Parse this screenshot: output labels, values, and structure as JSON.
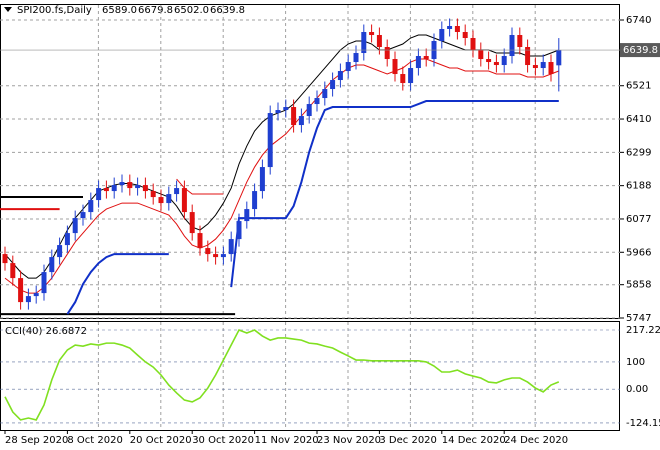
{
  "chart_data": {
    "type": "candlestick",
    "symbol": "SPI200.fs,Daily",
    "last_bar": {
      "values": [
        6589,
        6679.8,
        6502,
        6639.8
      ],
      "value_labels": [
        "6589.0",
        "6679.8",
        "6502.0",
        "6639.8"
      ]
    },
    "categories": [
      "28 Sep 2020",
      null,
      null,
      null,
      null,
      null,
      null,
      null,
      "8 Oct 2020",
      null,
      null,
      null,
      null,
      null,
      null,
      null,
      "20 Oct 2020",
      null,
      null,
      null,
      null,
      null,
      null,
      null,
      "30 Oct 2020",
      null,
      null,
      null,
      null,
      null,
      null,
      null,
      "11 Nov 2020",
      null,
      null,
      null,
      null,
      null,
      null,
      null,
      "23 Nov 2020",
      null,
      null,
      null,
      null,
      null,
      null,
      null,
      "3 Dec 2020",
      null,
      null,
      null,
      null,
      null,
      null,
      null,
      "14 Dec 2020",
      null,
      null,
      null,
      null,
      null,
      null,
      null,
      "24 Dec 2020",
      null,
      null,
      null,
      null,
      null,
      null,
      null
    ],
    "open": [
      5960,
      5930,
      5880,
      5800,
      5820,
      5830,
      5900,
      5950,
      5990,
      6030,
      6080,
      6100,
      6140,
      6180,
      6170,
      6190,
      6200,
      6180,
      6190,
      6170,
      6150,
      6130,
      6160,
      6180,
      6100,
      6030,
      5980,
      5960,
      5950,
      5960,
      6010,
      6070,
      6110,
      6170,
      6250,
      6430,
      6440,
      6450,
      6390,
      6420,
      6460,
      6480,
      6510,
      6540,
      6570,
      6600,
      6630,
      6700,
      6690,
      6650,
      6610,
      6560,
      6530,
      6580,
      6620,
      6610,
      6670,
      6710,
      6720,
      6700,
      6680,
      6640,
      6610,
      6600,
      6590,
      6620,
      6690,
      6650,
      6590,
      6580,
      6600,
      6589
    ],
    "high": [
      5985,
      5955,
      5905,
      5845,
      5855,
      5925,
      5975,
      6015,
      6055,
      6105,
      6125,
      6165,
      6205,
      6205,
      6215,
      6225,
      6225,
      6215,
      6215,
      6195,
      6175,
      6185,
      6205,
      6205,
      6125,
      6055,
      6005,
      5985,
      5985,
      6035,
      6095,
      6135,
      6195,
      6275,
      6455,
      6465,
      6475,
      6475,
      6445,
      6485,
      6505,
      6535,
      6565,
      6595,
      6625,
      6655,
      6725,
      6725,
      6715,
      6675,
      6635,
      6585,
      6605,
      6645,
      6645,
      6695,
      6735,
      6745,
      6745,
      6725,
      6705,
      6665,
      6635,
      6625,
      6645,
      6715,
      6715,
      6675,
      6615,
      6625,
      6625,
      6679.8
    ],
    "low": [
      5905,
      5855,
      5775,
      5775,
      5795,
      5805,
      5875,
      5925,
      5965,
      6005,
      6055,
      6075,
      6115,
      6145,
      6145,
      6165,
      6155,
      6155,
      6145,
      6125,
      6105,
      6105,
      6135,
      6075,
      6005,
      5955,
      5935,
      5925,
      5925,
      5935,
      5985,
      6045,
      6085,
      6145,
      6225,
      6405,
      6415,
      6365,
      6365,
      6395,
      6435,
      6455,
      6485,
      6515,
      6545,
      6575,
      6605,
      6665,
      6625,
      6585,
      6535,
      6505,
      6505,
      6555,
      6585,
      6585,
      6645,
      6685,
      6675,
      6655,
      6615,
      6585,
      6575,
      6565,
      6565,
      6595,
      6625,
      6565,
      6555,
      6555,
      6535,
      6502
    ],
    "close": [
      5930,
      5880,
      5800,
      5820,
      5830,
      5900,
      5950,
      5990,
      6030,
      6080,
      6100,
      6140,
      6180,
      6170,
      6190,
      6200,
      6180,
      6190,
      6170,
      6150,
      6130,
      6160,
      6180,
      6100,
      6030,
      5980,
      5960,
      5950,
      5960,
      6010,
      6070,
      6110,
      6170,
      6250,
      6430,
      6440,
      6450,
      6390,
      6420,
      6460,
      6480,
      6510,
      6540,
      6570,
      6600,
      6630,
      6700,
      6690,
      6650,
      6610,
      6560,
      6530,
      6580,
      6620,
      6610,
      6670,
      6710,
      6720,
      6700,
      6680,
      6640,
      6610,
      6600,
      6590,
      6620,
      6690,
      6650,
      6590,
      6580,
      6600,
      6560,
      6639.8
    ],
    "up_color": "#1f3fd0",
    "down_color": "#e01010",
    "lines": [
      {
        "color": "#000000",
        "values": [
          5960,
          5930,
          5900,
          5880,
          5880,
          5900,
          5940,
          5990,
          6040,
          6080,
          6110,
          6140,
          6170,
          6180,
          6190,
          6195,
          6195,
          6190,
          6180,
          6170,
          6160,
          6150,
          6120,
          6080,
          6050,
          6040,
          6060,
          6090,
          6130,
          6180,
          6260,
          6320,
          6370,
          6400,
          6420,
          6430,
          6440,
          6460,
          6490,
          6520,
          6550,
          6580,
          6610,
          6640,
          6660,
          6670,
          6670,
          6660,
          6640,
          6640,
          6650,
          6660,
          6680,
          6690,
          6690,
          6680,
          6670,
          6660,
          6650,
          6640,
          6640,
          6640,
          6640,
          6630,
          6630,
          6630,
          6630,
          6620,
          6620,
          6620,
          6630,
          6640
        ]
      },
      {
        "color": "#e01010",
        "values": [
          5880,
          5860,
          5840,
          5830,
          5830,
          5850,
          5880,
          5920,
          5960,
          6000,
          6030,
          6060,
          6090,
          6110,
          6120,
          6130,
          6130,
          6130,
          6120,
          6110,
          6100,
          6090,
          6060,
          6020,
          5990,
          5980,
          5990,
          6010,
          6040,
          6080,
          6140,
          6200,
          6250,
          6290,
          6320,
          6340,
          6360,
          6390,
          6420,
          6450,
          6480,
          6510,
          6540,
          6560,
          6580,
          6590,
          6590,
          6580,
          6570,
          6560,
          6570,
          6580,
          6600,
          6610,
          6610,
          6600,
          6590,
          6580,
          6580,
          6570,
          6570,
          6570,
          6570,
          6560,
          6560,
          6560,
          6560,
          6550,
          6550,
          6550,
          6560,
          6570
        ]
      },
      {
        "color": "#1030c8",
        "values": [
          null,
          null,
          null,
          null,
          null,
          null,
          null,
          null,
          5760,
          5800,
          5860,
          5900,
          5930,
          5950,
          5960,
          5960,
          5960,
          5960,
          5960,
          5960,
          5960,
          5960,
          null,
          null,
          null,
          null,
          null,
          null,
          null,
          5850,
          6080,
          6080,
          6080,
          6080,
          6080,
          6080,
          6080,
          6120,
          6200,
          6300,
          6380,
          6440,
          6450,
          6450,
          6450,
          6450,
          6450,
          6450,
          6450,
          6450,
          6450,
          6450,
          6450,
          6460,
          6470,
          6470,
          6470,
          6470,
          6470,
          6470,
          6470,
          6470,
          6470,
          6470,
          6470,
          6470,
          6470,
          6470,
          6470,
          6470,
          6470,
          6470
        ]
      },
      {
        "color": "#e01010",
        "values": [
          null,
          null,
          null,
          null,
          null,
          null,
          null,
          null,
          null,
          null,
          null,
          null,
          null,
          null,
          null,
          null,
          null,
          null,
          null,
          null,
          null,
          null,
          6210,
          6180,
          6160,
          6160,
          6160,
          6160,
          6160,
          null,
          null,
          null,
          null,
          null,
          null,
          null,
          null,
          null,
          null,
          null,
          null,
          null,
          null,
          null,
          null,
          null,
          null,
          null,
          null,
          null,
          null,
          null,
          null,
          null,
          null,
          null,
          null,
          null,
          null,
          null,
          null,
          null,
          null,
          null,
          null,
          null,
          null,
          null,
          null,
          null,
          null,
          null
        ]
      }
    ],
    "levels": [
      {
        "color": "#000000",
        "value": 6150,
        "from": 0,
        "to": 10
      },
      {
        "color": "#000000",
        "value": 5760,
        "from": 0,
        "to": 29.5
      },
      {
        "color": "#e01010",
        "value": 6110,
        "from": 0,
        "to": 7
      }
    ],
    "ylim": [
      5747,
      6790
    ],
    "yticks": [
      6740,
      6521,
      6410,
      6299,
      6188,
      6077,
      5966,
      5858,
      5747
    ],
    "grid": true,
    "indicator": {
      "title": "CCI(40) 26.6872",
      "color": "#80e020",
      "values": [
        -28,
        -84,
        -113,
        -106,
        -113,
        -58,
        34,
        107,
        144,
        162,
        158,
        166,
        162,
        169,
        169,
        162,
        151,
        125,
        100,
        81,
        52,
        15,
        -14,
        -40,
        -47,
        -32,
        4,
        52,
        107,
        162,
        217,
        206,
        217,
        195,
        180,
        188,
        188,
        184,
        180,
        169,
        166,
        158,
        151,
        136,
        122,
        107,
        107,
        104,
        104,
        104,
        104,
        104,
        104,
        104,
        100,
        85,
        63,
        63,
        70,
        56,
        48,
        41,
        26,
        23,
        34,
        41,
        41,
        26,
        4,
        -10,
        15,
        26.6872
      ],
      "ylim": [
        -150,
        246.6
      ],
      "yticks": [
        217.2245,
        100,
        {
          "value": 0,
          "label": "0.00"
        },
        -124.155
      ]
    }
  }
}
